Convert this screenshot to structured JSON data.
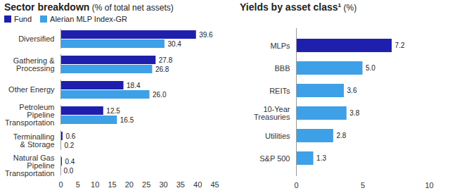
{
  "chart_data": [
    {
      "type": "bar",
      "orientation": "horizontal",
      "title": "Sector breakdown",
      "subtitle": "(% of total net assets)",
      "categories": [
        "Diversified",
        "Gathering & Processing",
        "Other Energy",
        "Petroleum Pipeline Transportation",
        "Terminalling & Storage",
        "Natural Gas Pipeline Transportation"
      ],
      "series": [
        {
          "name": "Fund",
          "color": "#1f1fae",
          "values": [
            39.6,
            27.8,
            18.4,
            12.5,
            0.6,
            0.4
          ],
          "value_labels": [
            "39.6",
            "27.8",
            "18.4",
            "12.5",
            "0.6",
            "0.4"
          ]
        },
        {
          "name": "Alerian MLP Index-GR",
          "color": "#3ea0e6",
          "values": [
            30.4,
            26.8,
            26.0,
            16.5,
            0.2,
            0.0
          ],
          "value_labels": [
            "30.4",
            "26.8",
            "26.0",
            "16.5",
            "0.2",
            "0.0"
          ]
        }
      ],
      "xlim": [
        0,
        45
      ],
      "xticks": [
        0,
        5,
        10,
        15,
        20,
        25,
        30,
        35,
        40,
        45
      ],
      "grid": false,
      "legend": "top-left",
      "data_labels": true
    },
    {
      "type": "bar",
      "orientation": "horizontal",
      "title": "Yields by asset class¹",
      "subtitle": "(%)",
      "categories": [
        "MLPs",
        "BBB",
        "REITs",
        "10-Year Treasuries",
        "Utilities",
        "S&P 500"
      ],
      "values": [
        7.2,
        5.0,
        3.6,
        3.8,
        2.8,
        1.3
      ],
      "value_labels": [
        "7.2",
        "5.0",
        "3.6",
        "3.8",
        "2.8",
        "1.3"
      ],
      "colors": [
        "#1f1fae",
        "#3ea0e6",
        "#3ea0e6",
        "#3ea0e6",
        "#3ea0e6",
        "#3ea0e6"
      ],
      "xlim": [
        0,
        10
      ],
      "xticks": [
        0,
        5,
        10
      ],
      "grid": false,
      "data_labels": true
    }
  ]
}
